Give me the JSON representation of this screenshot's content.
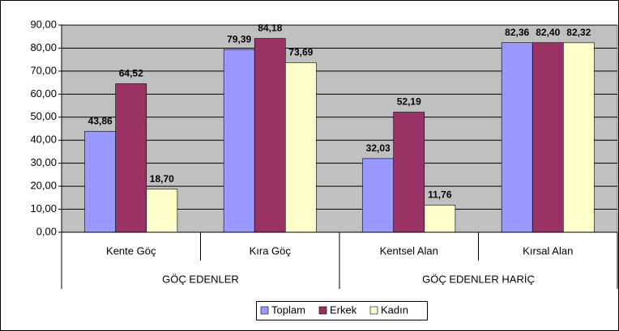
{
  "chart_data": {
    "type": "bar",
    "category_groups": [
      {
        "name": "GÖÇ EDENLER",
        "categories": [
          "Kente Göç",
          "Kıra Göç"
        ]
      },
      {
        "name": "GÖÇ EDENLER HARİÇ",
        "categories": [
          "Kentsel Alan",
          "Kırsal Alan"
        ]
      }
    ],
    "series": [
      {
        "name": "Toplam",
        "color": "#9999ff",
        "values": [
          43.86,
          79.39,
          32.03,
          82.36
        ],
        "value_labels": [
          "43,86",
          "79,39",
          "32,03",
          "82,36"
        ]
      },
      {
        "name": "Erkek",
        "color": "#993366",
        "values": [
          64.52,
          84.18,
          52.19,
          82.4
        ],
        "value_labels": [
          "64,52",
          "84,18",
          "52,19",
          "82,40"
        ]
      },
      {
        "name": "Kadın",
        "color": "#ffffcc",
        "values": [
          18.7,
          73.69,
          11.76,
          82.32
        ],
        "value_labels": [
          "18,70",
          "73,69",
          "11,76",
          "82,32"
        ]
      }
    ],
    "ylim": [
      0,
      90
    ],
    "yticks": [
      {
        "value": 0,
        "label": "0,00"
      },
      {
        "value": 10,
        "label": "10,00"
      },
      {
        "value": 20,
        "label": "20,00"
      },
      {
        "value": 30,
        "label": "30,00"
      },
      {
        "value": 40,
        "label": "40,00"
      },
      {
        "value": 50,
        "label": "50,00"
      },
      {
        "value": 60,
        "label": "60,00"
      },
      {
        "value": 70,
        "label": "70,00"
      },
      {
        "value": 80,
        "label": "80,00"
      },
      {
        "value": 90,
        "label": "90,00"
      }
    ],
    "grid": true,
    "legend": "bottom"
  }
}
